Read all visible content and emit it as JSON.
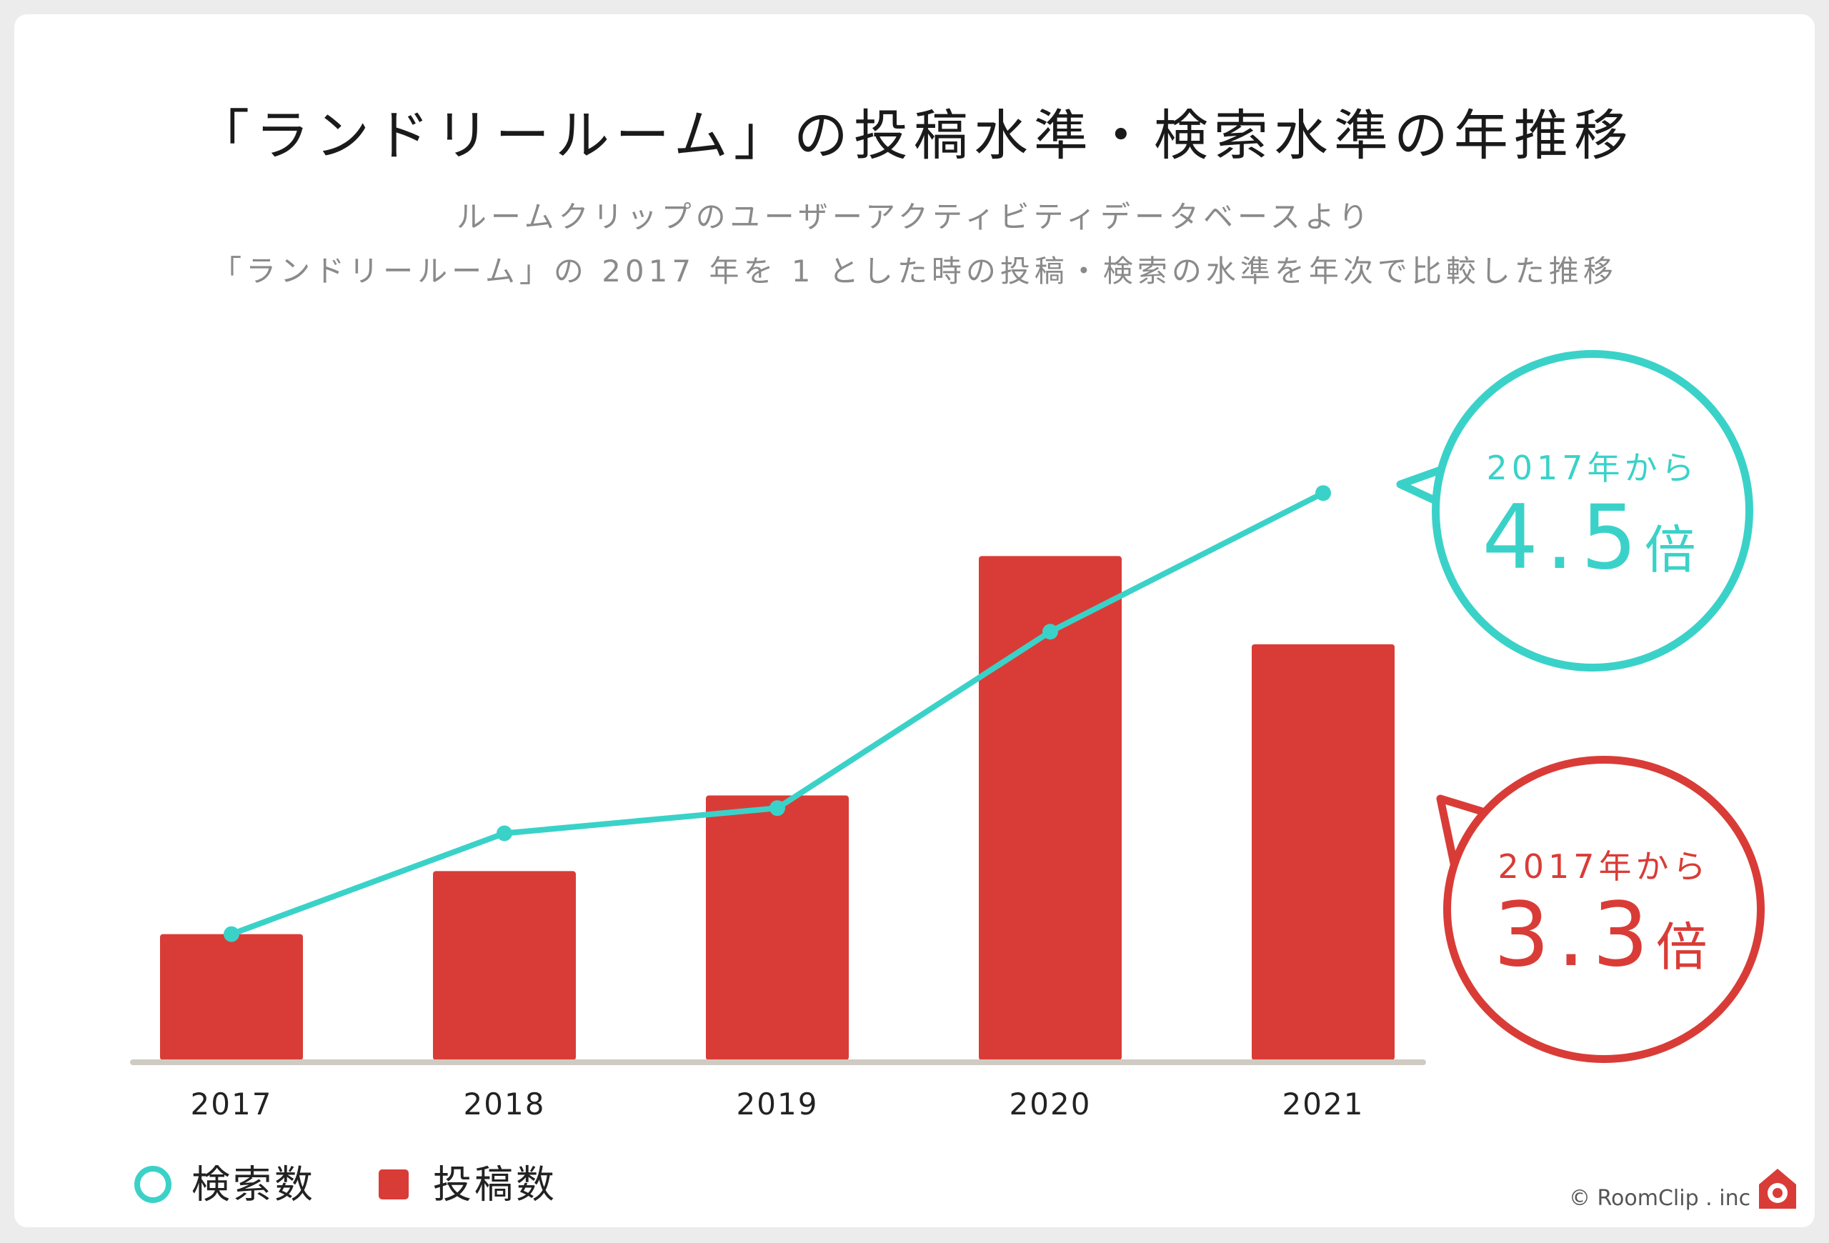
{
  "title": "「ランドリールーム」の投稿水準・検索水準の年推移",
  "subtitle_line1": "ルームクリップのユーザーアクティビティデータベースより",
  "subtitle_line2": "「ランドリールーム」の 2017 年を 1 とした時の投稿・検索の水準を年次で比較した推移",
  "colors": {
    "search": "#3ad2c8",
    "posts": "#d93c37",
    "baseline": "#cfcbc2"
  },
  "chart_data": {
    "type": "bar",
    "categories": [
      "2017",
      "2018",
      "2019",
      "2020",
      "2021"
    ],
    "series": [
      {
        "name": "投稿数",
        "type": "bar",
        "values": [
          1.0,
          1.5,
          2.1,
          4.0,
          3.3
        ]
      },
      {
        "name": "検索数",
        "type": "line",
        "values": [
          1.0,
          1.8,
          2.0,
          3.4,
          4.5
        ]
      }
    ],
    "ylim": [
      0,
      5.0
    ],
    "grid": false,
    "legend": "bottom-left"
  },
  "callouts": {
    "search": {
      "prefix": "2017年から",
      "value": "4.5",
      "unit": "倍"
    },
    "posts": {
      "prefix": "2017年から",
      "value": "3.3",
      "unit": "倍"
    }
  },
  "legend": {
    "search_label": "検索数",
    "posts_label": "投稿数"
  },
  "credit": "© RoomClip . inc",
  "logo_icon": "roomclip-house-camera-icon"
}
